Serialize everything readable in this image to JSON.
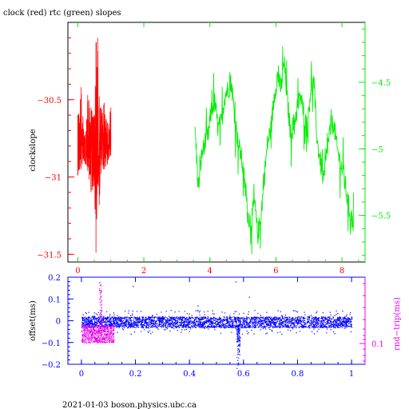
{
  "title": "clock (red) rtc (green) slopes",
  "footer": "2021-01-03 boson.physics.ubc.ca",
  "colors": {
    "red": "#ff0000",
    "green": "#00ee00",
    "blue": "#0000ff",
    "magenta": "#ee00ee",
    "axis": "#000000"
  },
  "chart_data": [
    {
      "type": "line",
      "ylabel": "clockslope",
      "xlim": [
        -0.3,
        8.7
      ],
      "xticks": [
        0,
        2,
        4,
        6,
        8
      ],
      "ylim_left": [
        -31.55,
        -30.0
      ],
      "yticks_left": [
        -30.5,
        -31,
        -31.5
      ],
      "ytick_labels_left": [
        "−30.5",
        "−31",
        "−31.5"
      ],
      "ylim_right": [
        -5.85,
        -4.05
      ],
      "yticks_right": [
        -4.5,
        -5,
        -5.5
      ],
      "ytick_labels_right": [
        "−4.5",
        "−5",
        "−5.5"
      ],
      "series": [
        {
          "color": "red",
          "axis": "left",
          "x": [
            0.0,
            0.1,
            0.2,
            0.3,
            0.4,
            0.5,
            0.55,
            0.6,
            0.65,
            0.7,
            0.8,
            0.9,
            1.0
          ],
          "y_min": [
            -30.99,
            -30.95,
            -30.9,
            -30.96,
            -31.1,
            -31.06,
            -31.49,
            -31.04,
            -31.18,
            -30.98,
            -30.95,
            -30.92,
            -30.86
          ],
          "y_max": [
            -30.6,
            -30.42,
            -30.75,
            -30.47,
            -30.55,
            -30.6,
            -30.13,
            -30.1,
            -30.48,
            -30.55,
            -30.52,
            -30.65,
            -30.55
          ]
        },
        {
          "color": "green",
          "axis": "right",
          "x": [
            3.55,
            3.65,
            3.75,
            3.85,
            3.95,
            4.05,
            4.15,
            4.25,
            4.35,
            4.45,
            4.55,
            4.65,
            4.75,
            4.85,
            4.95,
            5.05,
            5.15,
            5.25,
            5.35,
            5.45,
            5.55,
            5.65,
            5.75,
            5.85,
            5.95,
            6.05,
            6.15,
            6.25,
            6.35,
            6.45,
            6.55,
            6.65,
            6.75,
            6.85,
            6.95,
            7.05,
            7.15,
            7.25,
            7.35,
            7.45,
            7.55,
            7.65,
            7.75,
            7.85,
            7.95,
            8.05,
            8.15,
            8.25,
            8.35
          ],
          "y": [
            -4.85,
            -5.3,
            -5.05,
            -4.95,
            -4.9,
            -4.7,
            -4.65,
            -4.85,
            -4.8,
            -4.6,
            -4.55,
            -4.5,
            -4.75,
            -4.95,
            -5.05,
            -5.25,
            -5.5,
            -5.55,
            -5.4,
            -5.65,
            -5.5,
            -5.2,
            -4.95,
            -4.85,
            -4.6,
            -4.45,
            -4.55,
            -4.35,
            -4.65,
            -4.9,
            -4.8,
            -4.7,
            -4.6,
            -4.75,
            -4.85,
            -4.55,
            -4.5,
            -4.95,
            -5.1,
            -5.25,
            -5.0,
            -4.85,
            -4.8,
            -5.0,
            -5.1,
            -5.2,
            -5.35,
            -5.5,
            -5.55
          ],
          "y_spread": 0.08
        }
      ]
    },
    {
      "type": "scatter",
      "ylabel": "offset(ms)",
      "ylabel_right": "rnd−trip(ms)",
      "xlim": [
        -0.05,
        1.05
      ],
      "xticks": [
        0,
        0.2,
        0.4,
        0.6,
        0.8,
        1
      ],
      "xtick_labels": [
        "0",
        "0.2",
        "0.4",
        "0.6",
        "0.8",
        "1"
      ],
      "ylim": [
        -0.2,
        0.2
      ],
      "yticks": [
        0.2,
        0.1,
        0,
        -0.1,
        -0.2
      ],
      "ytick_labels": [
        "0.2",
        "0.1",
        "0",
        "−0.1",
        "−0.2"
      ],
      "ytick_label_right": "0.1",
      "series": [
        {
          "color": "blue",
          "description_values": {
            "x_range": [
              0,
              1
            ],
            "y_band": [
              -0.03,
              0.02
            ],
            "dip_x": 0.58,
            "dip_y_min": -0.2
          }
        },
        {
          "color": "magenta",
          "description_values": {
            "x_range": [
              0,
              0.12
            ],
            "y_band": [
              -0.1,
              -0.02
            ],
            "spike_x": 0.07,
            "spike_y_max": 0.18
          }
        }
      ]
    }
  ]
}
